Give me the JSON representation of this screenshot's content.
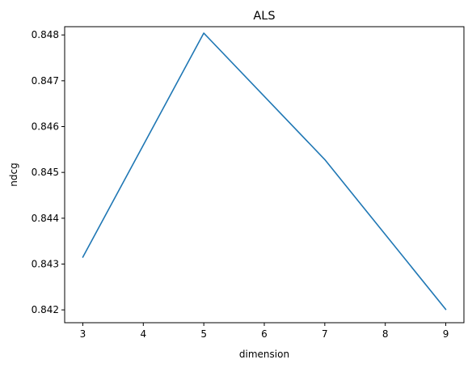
{
  "chart_data": {
    "type": "line",
    "title": "ALS",
    "xlabel": "dimension",
    "ylabel": "ndcg",
    "x": [
      3,
      5,
      7,
      9
    ],
    "series": [
      {
        "values": [
          0.84315,
          0.84804,
          0.84528,
          0.84201
        ],
        "color": "#1f77b4"
      }
    ],
    "xlim": [
      2.7,
      9.3
    ],
    "ylim": [
      0.84172,
      0.84818
    ],
    "xticks": [
      3,
      4,
      5,
      6,
      7,
      8,
      9
    ],
    "xtick_labels": [
      "3",
      "4",
      "5",
      "6",
      "7",
      "8",
      "9"
    ],
    "yticks": [
      0.842,
      0.843,
      0.844,
      0.845,
      0.846,
      0.847,
      0.848
    ],
    "ytick_labels": [
      "0.842",
      "0.843",
      "0.844",
      "0.845",
      "0.846",
      "0.847",
      "0.848"
    ],
    "grid": false,
    "legend": false
  }
}
